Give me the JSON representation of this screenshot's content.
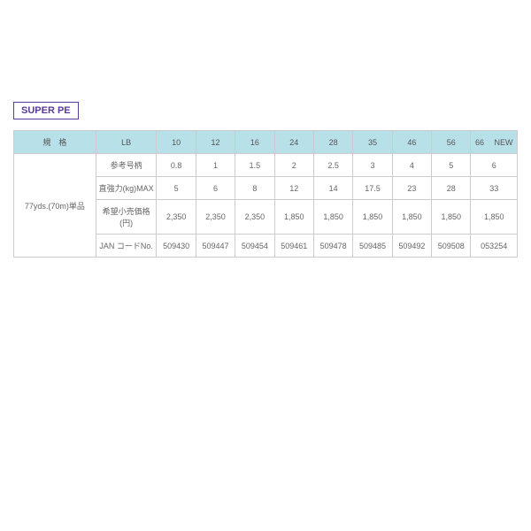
{
  "badge_label": "SUPER PE",
  "table": {
    "header": {
      "spec": "規　格",
      "lb": "LB",
      "cols": [
        "10",
        "12",
        "16",
        "24",
        "28",
        "35",
        "46",
        "56",
        "66 　NEW"
      ]
    },
    "spec_label": "77yds.(70m)単品",
    "rows": [
      {
        "label": "参考号柄",
        "values": [
          "0.8",
          "1",
          "1.5",
          "2",
          "2.5",
          "3",
          "4",
          "5",
          "6"
        ]
      },
      {
        "label": "直強力(kg)MAX",
        "values": [
          "5",
          "6",
          "8",
          "12",
          "14",
          "17.5",
          "23",
          "28",
          "33"
        ]
      },
      {
        "label": "希望小売価格(円)",
        "values": [
          "2,350",
          "2,350",
          "2,350",
          "1,850",
          "1,850",
          "1,850",
          "1,850",
          "1,850",
          "1,850"
        ]
      },
      {
        "label": "JAN コードNo.",
        "values": [
          "509430",
          "509447",
          "509454",
          "509461",
          "509478",
          "509485",
          "509492",
          "509508",
          "053254"
        ]
      }
    ]
  },
  "colors": {
    "header_bg": "#b8e0e8",
    "border": "#cccccc",
    "text": "#666666",
    "badge": "#5a3a9a",
    "background": "#ffffff"
  }
}
